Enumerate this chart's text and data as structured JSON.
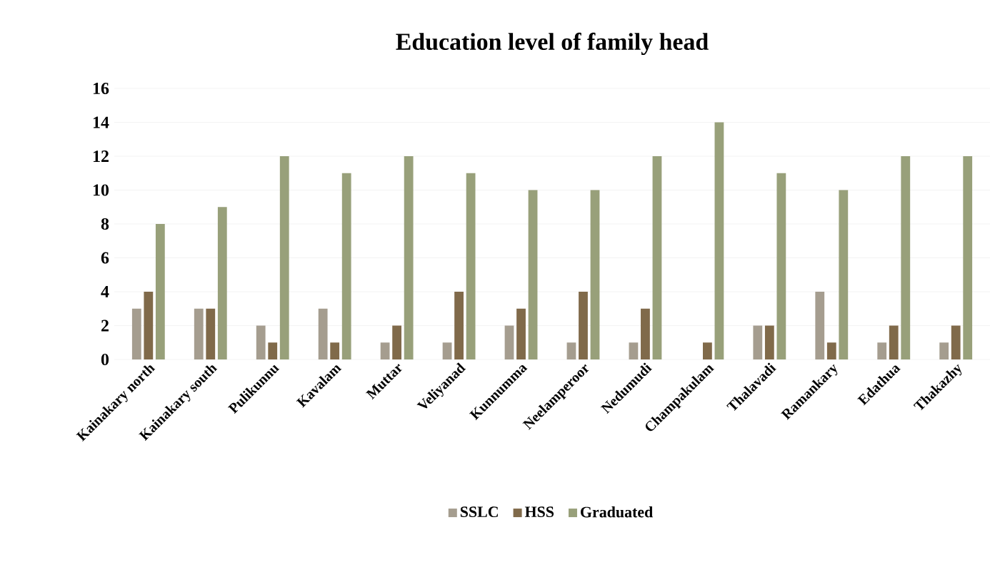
{
  "chart_data": {
    "type": "bar",
    "title": "Education level of family head",
    "categories": [
      "Kainakary north",
      "Kainakary south",
      "Pulikunnu",
      "Kavalam",
      "Muttar",
      "Veliyanad",
      "Kunnumma",
      "Neelamperoor",
      "Nedumudi",
      "Champakulam",
      "Thalavadi",
      "Ramankary",
      "Edathua",
      "Thakazhy"
    ],
    "series": [
      {
        "name": "SSLC",
        "color": "#a59d8f",
        "values": [
          3,
          3,
          2,
          3,
          1,
          1,
          2,
          1,
          1,
          0,
          2,
          4,
          1,
          1
        ]
      },
      {
        "name": "HSS",
        "color": "#806a4a",
        "values": [
          4,
          3,
          1,
          1,
          2,
          4,
          3,
          4,
          3,
          1,
          2,
          1,
          2,
          2
        ]
      },
      {
        "name": "Graduated",
        "color": "#98a07a",
        "values": [
          8,
          9,
          12,
          11,
          12,
          11,
          10,
          10,
          12,
          14,
          11,
          10,
          12,
          12
        ]
      }
    ],
    "ylim": [
      0,
      16
    ],
    "yticks": [
      0,
      2,
      4,
      6,
      8,
      10,
      12,
      14,
      16
    ],
    "grid": "y",
    "legend": "bottom"
  }
}
